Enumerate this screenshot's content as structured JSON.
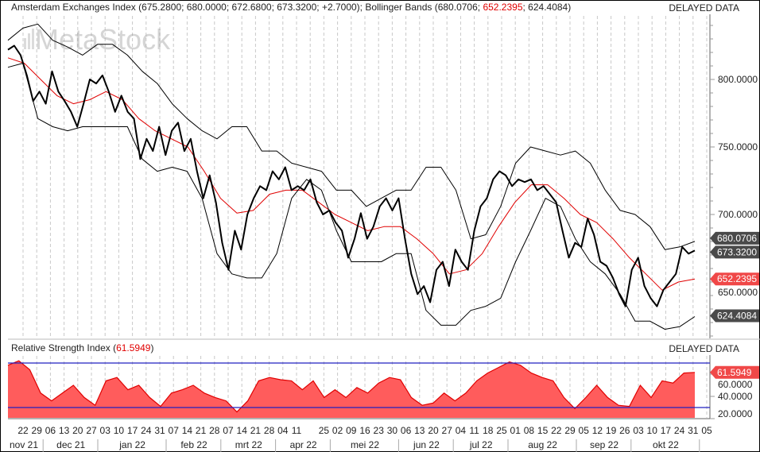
{
  "header": {
    "index_label": "Amsterdam Exchanges Index (675.2800; 680.0000; 672.6800; 673.3200; +2.7000); ",
    "bb_prefix": "Bollinger Bands (680.0706; ",
    "bb_mid": "652.2395",
    "bb_suffix": "; 624.4084)",
    "delayed": "DELAYED DATA"
  },
  "rsi_header": {
    "label_prefix": "Relative Strength Index (",
    "value": "61.5949",
    "label_suffix": ")",
    "delayed": "DELAYED DATA"
  },
  "watermark": "MetaStock",
  "colors": {
    "price": "#000000",
    "upper": "#000000",
    "middle": "#e00000",
    "lower": "#000000",
    "rsi_fill": "#ff5c5c",
    "rsi_line": "#e00000",
    "rsi_levels": "#2020c0",
    "tag_dark": "#4a4a4a",
    "tag_red": "#f04848"
  },
  "price_axis": {
    "ticks": [
      "800.0000",
      "750.0000",
      "700.0000",
      "650.0000"
    ]
  },
  "rsi_axis": {
    "ticks": [
      "60.0000",
      "40.0000",
      "20.0000"
    ]
  },
  "tags": {
    "upper": "680.0706",
    "close": "673.3200",
    "middle": "652.2395",
    "lower": "624.4084",
    "rsi": "61.5949"
  },
  "dates": {
    "days": [
      "22",
      "29",
      "06",
      "13",
      "20",
      "27",
      "03",
      "10",
      "17",
      "24",
      "31",
      "07",
      "14",
      "21",
      "28",
      "07",
      "14",
      "21",
      "28",
      "04",
      "11",
      "",
      "25",
      "02",
      "09",
      "16",
      "23",
      "30",
      "06",
      "13",
      "20",
      "27",
      "04",
      "11",
      "18",
      "25",
      "01",
      "08",
      "15",
      "22",
      "29",
      "05",
      "12",
      "19",
      "26",
      "03",
      "10",
      "17",
      "24",
      "31",
      "05"
    ],
    "months": [
      {
        "label": "nov 21",
        "first": 0,
        "last": 1
      },
      {
        "label": "dec 21",
        "first": 2,
        "last": 5
      },
      {
        "label": "jan 22",
        "first": 6,
        "last": 10
      },
      {
        "label": "feb 22",
        "first": 11,
        "last": 14
      },
      {
        "label": "mrt 22",
        "first": 15,
        "last": 18
      },
      {
        "label": "apr 22",
        "first": 19,
        "last": 22
      },
      {
        "label": "mei 22",
        "first": 23,
        "last": 27
      },
      {
        "label": "jun 22",
        "first": 28,
        "last": 31
      },
      {
        "label": "jul 22",
        "first": 32,
        "last": 35
      },
      {
        "label": "aug 22",
        "first": 36,
        "last": 40
      },
      {
        "label": "sep 22",
        "first": 41,
        "last": 44
      },
      {
        "label": "okt 22",
        "first": 45,
        "last": 49
      }
    ]
  },
  "chart_data": [
    {
      "type": "line",
      "title": "Amsterdam Exchanges Index with Bollinger Bands",
      "ylim": [
        609,
        848
      ],
      "x_range": "2021-11-22 to 2022-11-04 (weekly ticks)",
      "series": [
        {
          "name": "close",
          "values": [
            822,
            825,
            818,
            803,
            784,
            791,
            782,
            806,
            791,
            784,
            776,
            765,
            782,
            800,
            797,
            803,
            791,
            776,
            788,
            776,
            771,
            741,
            756,
            747,
            765,
            744,
            762,
            768,
            747,
            756,
            732,
            712,
            729,
            709,
            679,
            659,
            688,
            674,
            700,
            712,
            721,
            718,
            732,
            726,
            735,
            718,
            721,
            718,
            726,
            709,
            700,
            703,
            694,
            688,
            668,
            682,
            701,
            682,
            691,
            706,
            712,
            703,
            712,
            682,
            656,
            641,
            647,
            635,
            659,
            665,
            647,
            674,
            665,
            659,
            688,
            706,
            712,
            726,
            732,
            729,
            721,
            726,
            724,
            726,
            718,
            721,
            715,
            709,
            688,
            668,
            679,
            676,
            697,
            685,
            665,
            662,
            653,
            641,
            632,
            659,
            668,
            647,
            638,
            632,
            644,
            650,
            656,
            676,
            671,
            673.32
          ]
        },
        {
          "name": "upper band",
          "values": [
            829,
            838,
            841,
            829,
            824,
            818,
            826,
            826,
            818,
            806,
            797,
            782,
            771,
            762,
            756,
            765,
            765,
            747,
            747,
            738,
            735,
            732,
            718,
            718,
            706,
            712,
            718,
            718,
            735,
            735,
            718,
            682,
            685,
            706,
            738,
            750,
            747,
            744,
            747,
            738,
            718,
            703,
            700,
            691,
            674,
            676,
            680.07
          ]
        },
        {
          "name": "middle band",
          "values": [
            816,
            812,
            800,
            788,
            782,
            785,
            791,
            785,
            771,
            762,
            756,
            750,
            732,
            712,
            701,
            703,
            715,
            718,
            718,
            709,
            700,
            694,
            688,
            691,
            691,
            682,
            671,
            656,
            659,
            671,
            691,
            709,
            722,
            722,
            712,
            700,
            694,
            682,
            668,
            656,
            644,
            650,
            652.24
          ]
        },
        {
          "name": "lower band",
          "values": [
            809,
            812,
            771,
            765,
            762,
            765,
            765,
            765,
            765,
            741,
            732,
            735,
            732,
            712,
            671,
            656,
            653,
            653,
            671,
            712,
            726,
            718,
            688,
            665,
            665,
            665,
            671,
            671,
            629,
            618,
            618,
            629,
            632,
            638,
            665,
            688,
            712,
            706,
            682,
            665,
            656,
            641,
            621,
            621,
            615,
            617,
            624.41
          ]
        }
      ]
    },
    {
      "type": "area",
      "title": "Relative Strength Index",
      "ylim": [
        21,
        77
      ],
      "levels": [
        70,
        30
      ],
      "series": [
        {
          "name": "RSI",
          "values": [
            68,
            72,
            64,
            43,
            36,
            43,
            50,
            39,
            32,
            54,
            57,
            46,
            50,
            39,
            31,
            43,
            46,
            50,
            43,
            39,
            36,
            26,
            36,
            54,
            57,
            55,
            54,
            46,
            54,
            39,
            46,
            39,
            48,
            43,
            52,
            57,
            55,
            39,
            32,
            34,
            43,
            36,
            43,
            54,
            61,
            66,
            71,
            68,
            61,
            57,
            54,
            39,
            29,
            39,
            50,
            39,
            32,
            31,
            50,
            39,
            54,
            52,
            61,
            61.59
          ]
        }
      ]
    }
  ]
}
